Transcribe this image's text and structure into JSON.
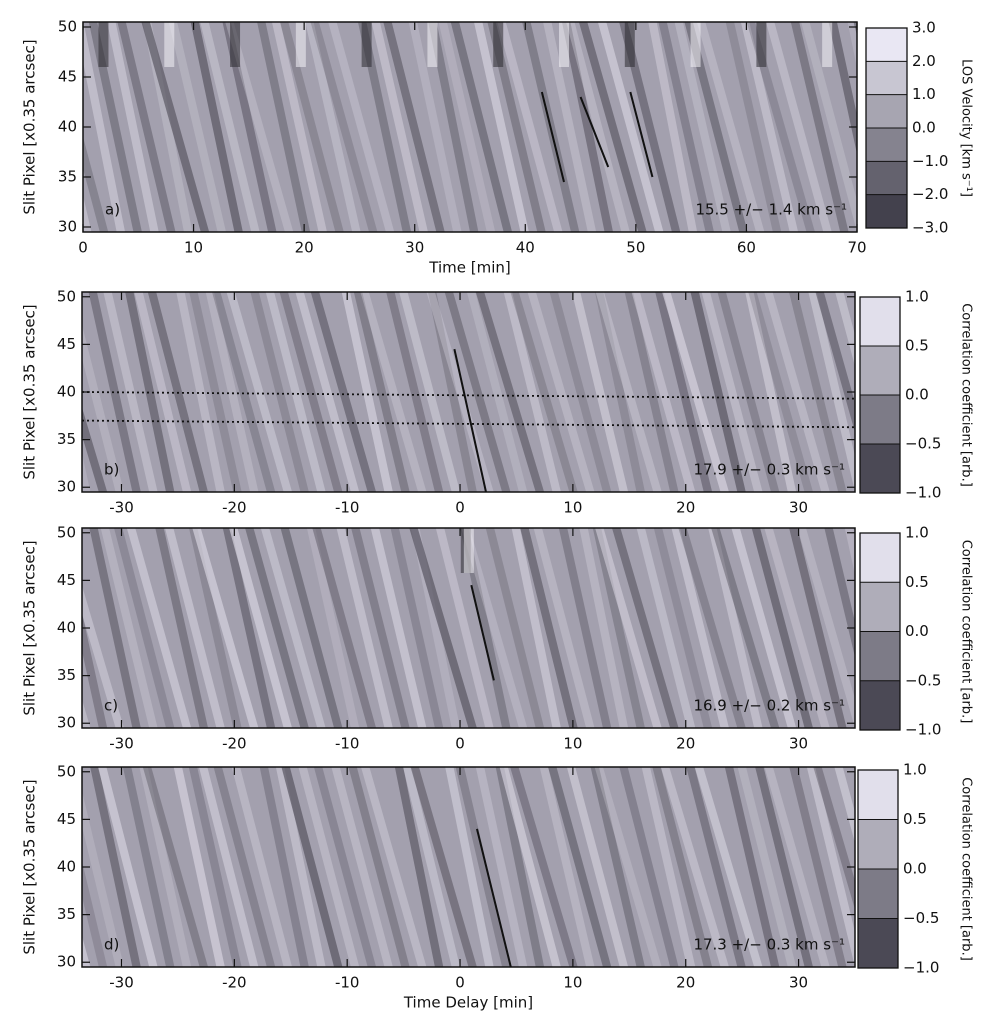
{
  "chart_data": [
    {
      "type": "heatmap",
      "panel_label": "a)",
      "ylabel": "Slit Pixel [x0.35 arcsec]",
      "xlabel": "Time [min]",
      "xlim": [
        0,
        70
      ],
      "xticks": [
        0,
        10,
        20,
        30,
        40,
        50,
        60,
        70
      ],
      "ylim": [
        29.5,
        50.5
      ],
      "yticks": [
        30,
        35,
        40,
        45,
        50
      ],
      "annotation": "15.5 +/− 1.4 km s⁻¹",
      "colorbar": {
        "label": "LOS Velocity [km s⁻¹]",
        "lim": [
          -3,
          3
        ],
        "ticks": [
          {
            "value": -3,
            "label": "−3.0"
          },
          {
            "value": -2,
            "label": "−2.0"
          },
          {
            "value": -1,
            "label": "−1.0"
          },
          {
            "value": 0,
            "label": "0.0"
          },
          {
            "value": 1,
            "label": "1.0"
          },
          {
            "value": 2,
            "label": "2.0"
          },
          {
            "value": 3,
            "label": "3.0"
          }
        ]
      },
      "lines": [
        {
          "x": [
            41.5,
            43.5
          ],
          "y": [
            43.5,
            34.5
          ],
          "style": "solid"
        },
        {
          "x": [
            45,
            47.5
          ],
          "y": [
            43,
            36
          ],
          "style": "solid"
        },
        {
          "x": [
            49.5,
            51.5
          ],
          "y": [
            43.5,
            35
          ],
          "style": "solid"
        }
      ]
    },
    {
      "type": "heatmap",
      "panel_label": "b)",
      "ylabel": "Slit Pixel [x0.35 arcsec]",
      "xlim": [
        -33.5,
        35
      ],
      "xticks": [
        -30,
        -20,
        -10,
        0,
        10,
        20,
        30
      ],
      "ylim": [
        29.5,
        50.5
      ],
      "yticks": [
        30,
        35,
        40,
        45,
        50
      ],
      "annotation": "17.9 +/− 0.3 km s⁻¹",
      "colorbar": {
        "label": "Correlation coefficient [arb.]",
        "lim": [
          -1,
          1
        ],
        "ticks": [
          {
            "value": -1,
            "label": "−1.0"
          },
          {
            "value": -0.5,
            "label": "−0.5"
          },
          {
            "value": 0,
            "label": "0.0"
          },
          0.5,
          {
            "value": 1,
            "label": "1.0"
          }
        ]
      },
      "lines": [
        {
          "x": [
            -0.5,
            2.3
          ],
          "y": [
            44.5,
            29.5
          ],
          "style": "solid"
        },
        {
          "x": [
            -33.5,
            35
          ],
          "y": [
            40,
            39.3
          ],
          "style": "dotted"
        },
        {
          "x": [
            -33.5,
            35
          ],
          "y": [
            37,
            36.3
          ],
          "style": "dotted"
        }
      ]
    },
    {
      "type": "heatmap",
      "panel_label": "c)",
      "ylabel": "Slit Pixel [x0.35 arcsec]",
      "xlim": [
        -33.5,
        35
      ],
      "xticks": [
        -30,
        -20,
        -10,
        0,
        10,
        20,
        30
      ],
      "ylim": [
        29.5,
        50.5
      ],
      "yticks": [
        30,
        35,
        40,
        45,
        50
      ],
      "annotation": "16.9 +/− 0.2 km s⁻¹",
      "colorbar": {
        "label": "Correlation coefficient [arb.]",
        "lim": [
          -1,
          1
        ],
        "ticks": [
          {
            "value": -1,
            "label": "−1.0"
          },
          {
            "value": -0.5,
            "label": "−0.5"
          },
          {
            "value": 0,
            "label": "0.0"
          },
          0.5,
          {
            "value": 1,
            "label": "1.0"
          }
        ]
      },
      "lines": [
        {
          "x": [
            1,
            3
          ],
          "y": [
            44.5,
            34.5
          ],
          "style": "solid"
        }
      ]
    },
    {
      "type": "heatmap",
      "panel_label": "d)",
      "ylabel": "Slit Pixel [x0.35 arcsec]",
      "xlabel": "Time Delay [min]",
      "xlim": [
        -33.5,
        35
      ],
      "xticks": [
        -30,
        -20,
        -10,
        0,
        10,
        20,
        30
      ],
      "ylim": [
        29.5,
        50.5
      ],
      "yticks": [
        30,
        35,
        40,
        45,
        50
      ],
      "annotation": "17.3 +/− 0.3 km s⁻¹",
      "colorbar": {
        "label": "Correlation coefficient [arb.]",
        "lim": [
          -1,
          1
        ],
        "ticks": [
          {
            "value": -1,
            "label": "−1.0"
          },
          {
            "value": -0.5,
            "label": "−0.5"
          },
          {
            "value": 0,
            "label": "0.0"
          },
          0.5,
          {
            "value": 1,
            "label": "1.0"
          }
        ]
      },
      "lines": [
        {
          "x": [
            1.5,
            4.5
          ],
          "y": [
            44,
            29.5
          ],
          "style": "solid"
        }
      ]
    }
  ]
}
